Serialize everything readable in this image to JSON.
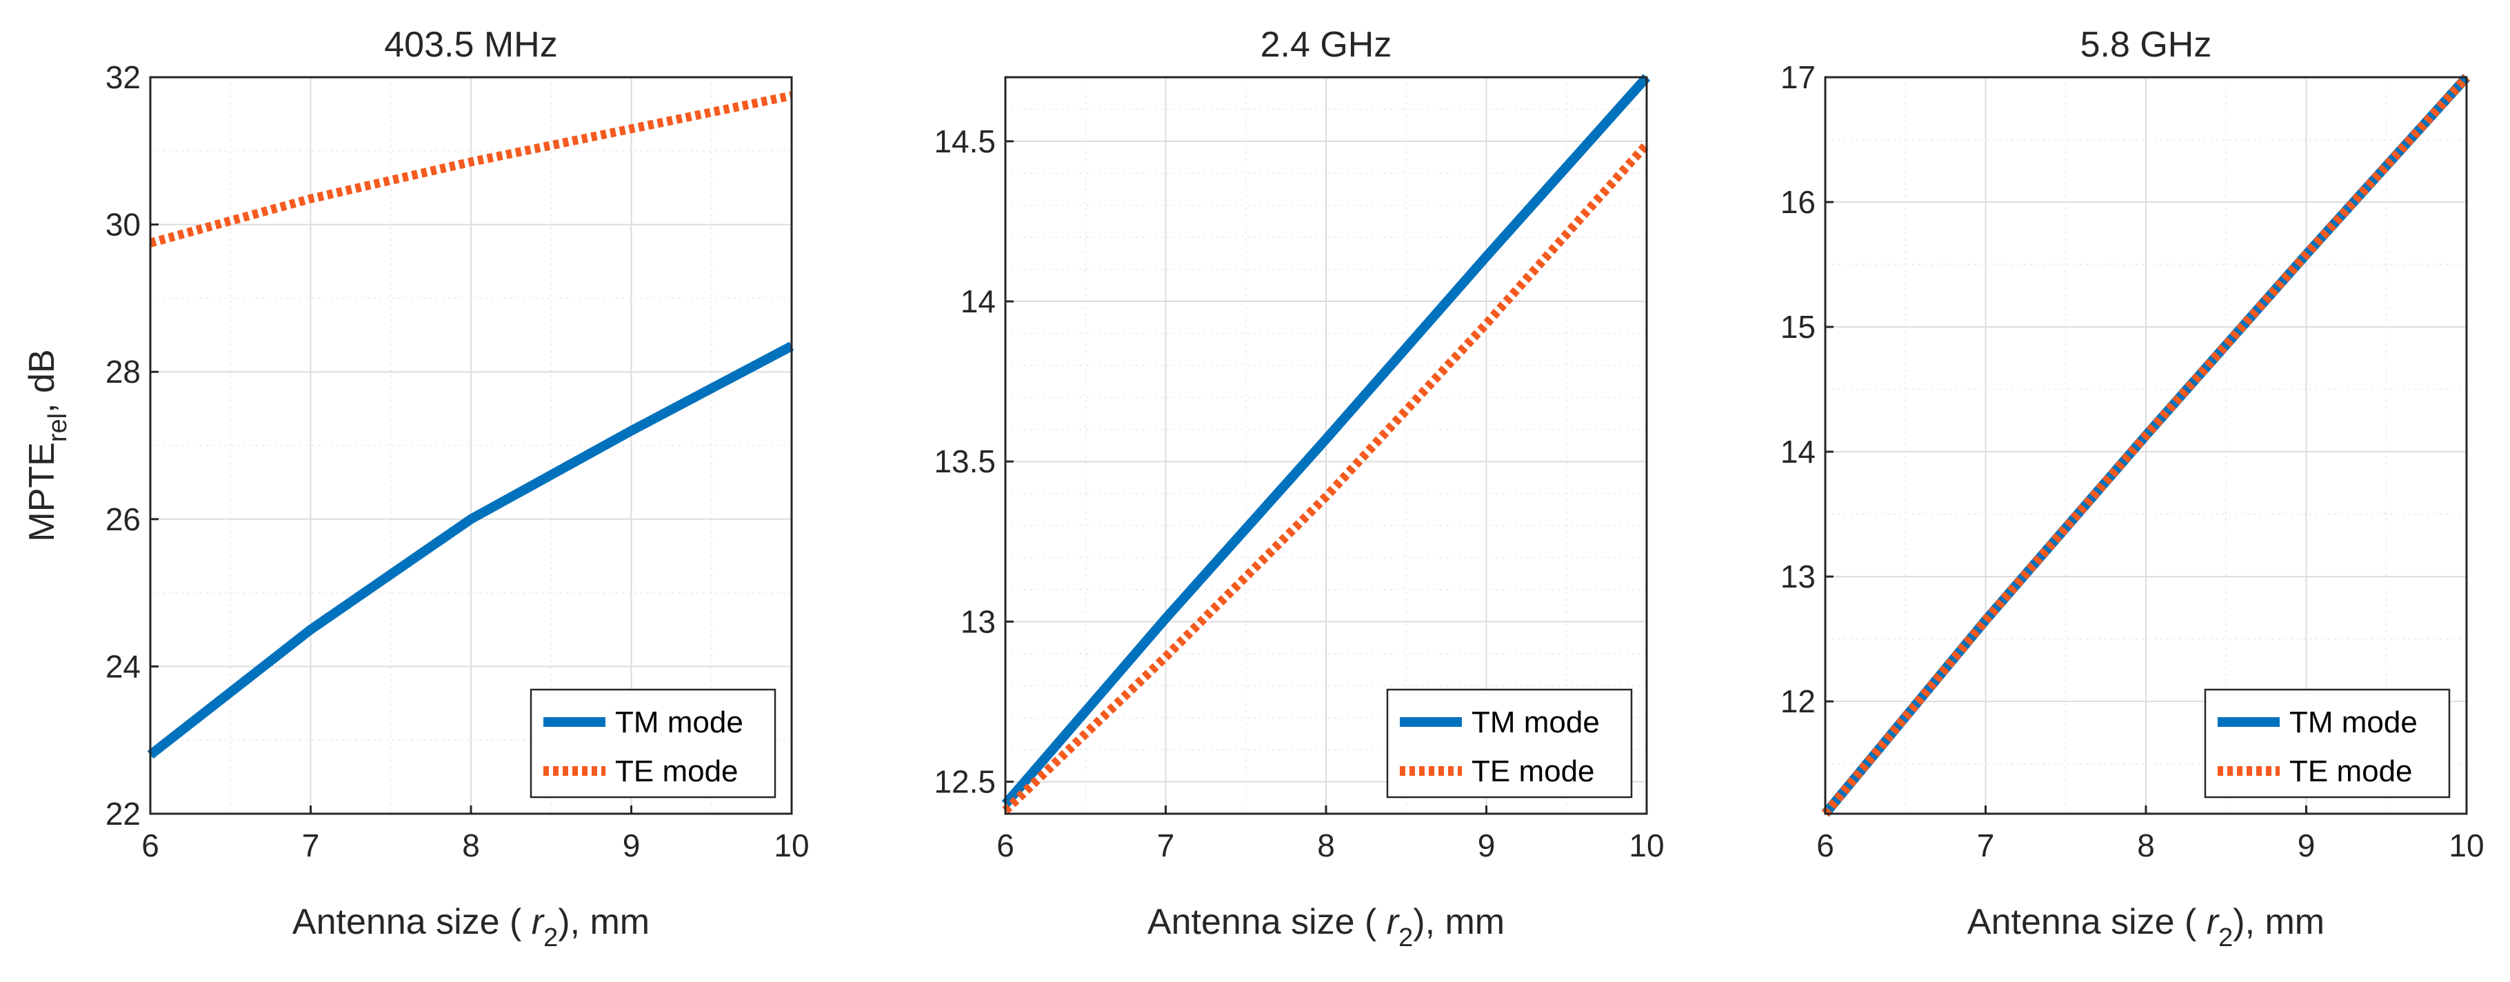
{
  "colors": {
    "tm": "#0072BD",
    "te": "#F55A1E",
    "axis": "#262626",
    "grid_major": "#DCDCDC",
    "grid_minor": "#EDEDED"
  },
  "chart_data": [
    {
      "type": "line",
      "title": "403.5 MHz",
      "xlabel": {
        "before": "Antenna size ( ",
        "var": "r",
        "sub": "2",
        "after": "), mm"
      },
      "ylabel": {
        "base": "MPTE",
        "sub": "rel",
        "after": ", dB"
      },
      "xlim": [
        6,
        10
      ],
      "ylim": [
        22,
        32
      ],
      "xticks": [
        6,
        7,
        8,
        9,
        10
      ],
      "yticks": [
        22,
        24,
        26,
        28,
        30,
        32
      ],
      "xtick_labels": [
        "6",
        "7",
        "8",
        "9",
        "10"
      ],
      "ytick_labels": [
        "22",
        "24",
        "26",
        "28",
        "30",
        "32"
      ],
      "minor_x": [
        6.5,
        7.5,
        8.5,
        9.5
      ],
      "minor_y": [
        23,
        25,
        27,
        29,
        31
      ],
      "x": [
        6,
        7,
        8,
        9,
        10
      ],
      "series": [
        {
          "name": "TM mode",
          "style": "solid",
          "values": [
            22.8,
            24.5,
            26.0,
            27.2,
            28.35
          ]
        },
        {
          "name": "TE mode",
          "style": "dotted",
          "values": [
            29.75,
            30.35,
            30.85,
            31.3,
            31.75
          ]
        }
      ],
      "legend": [
        "TM mode",
        "TE mode"
      ],
      "legend_position": "bottom-right",
      "grid": true
    },
    {
      "type": "line",
      "title": "2.4 GHz",
      "xlabel": {
        "before": "Antenna size ( ",
        "var": "r",
        "sub": "2",
        "after": "), mm"
      },
      "xlim": [
        6,
        10
      ],
      "ylim": [
        12.4,
        14.7
      ],
      "xticks": [
        6,
        7,
        8,
        9,
        10
      ],
      "yticks": [
        12.5,
        13,
        13.5,
        14,
        14.5
      ],
      "xtick_labels": [
        "6",
        "7",
        "8",
        "9",
        "10"
      ],
      "ytick_labels": [
        "12.5",
        "13",
        "13.5",
        "14",
        "14.5"
      ],
      "minor_x": [
        6.5,
        7.5,
        8.5,
        9.5
      ],
      "minor_y": [
        12.6,
        12.7,
        12.8,
        12.9,
        13.1,
        13.2,
        13.3,
        13.4,
        13.6,
        13.7,
        13.8,
        13.9,
        14.1,
        14.2,
        14.3,
        14.4,
        14.6
      ],
      "x": [
        6,
        7,
        8,
        9,
        10
      ],
      "series": [
        {
          "name": "TM mode",
          "style": "solid",
          "values": [
            12.43,
            13.01,
            13.57,
            14.14,
            14.7
          ]
        },
        {
          "name": "TE mode",
          "style": "dotted",
          "values": [
            12.41,
            12.89,
            13.39,
            13.93,
            14.49
          ]
        }
      ],
      "legend": [
        "TM mode",
        "TE mode"
      ],
      "legend_position": "bottom-right",
      "grid": true
    },
    {
      "type": "line",
      "title": "5.8 GHz",
      "xlabel": {
        "before": "Antenna size ( ",
        "var": "r",
        "sub": "2",
        "after": "), mm"
      },
      "xlim": [
        6,
        10
      ],
      "ylim": [
        11.1,
        17
      ],
      "xticks": [
        6,
        7,
        8,
        9,
        10
      ],
      "yticks": [
        12,
        13,
        14,
        15,
        16,
        17
      ],
      "xtick_labels": [
        "6",
        "7",
        "8",
        "9",
        "10"
      ],
      "ytick_labels": [
        "12",
        "13",
        "14",
        "15",
        "16",
        "17"
      ],
      "minor_x": [
        6.5,
        7.5,
        8.5,
        9.5
      ],
      "minor_y": [
        11.5,
        12.5,
        13.5,
        14.5,
        15.5,
        16.5
      ],
      "x": [
        6,
        7,
        8,
        9,
        10
      ],
      "series": [
        {
          "name": "TM mode",
          "style": "solid",
          "values": [
            11.1,
            12.65,
            14.13,
            15.58,
            17.0
          ]
        },
        {
          "name": "TE mode",
          "style": "dotted",
          "values": [
            11.1,
            12.65,
            14.13,
            15.58,
            17.0
          ]
        }
      ],
      "legend": [
        "TM mode",
        "TE mode"
      ],
      "legend_position": "bottom-right",
      "grid": true
    }
  ]
}
